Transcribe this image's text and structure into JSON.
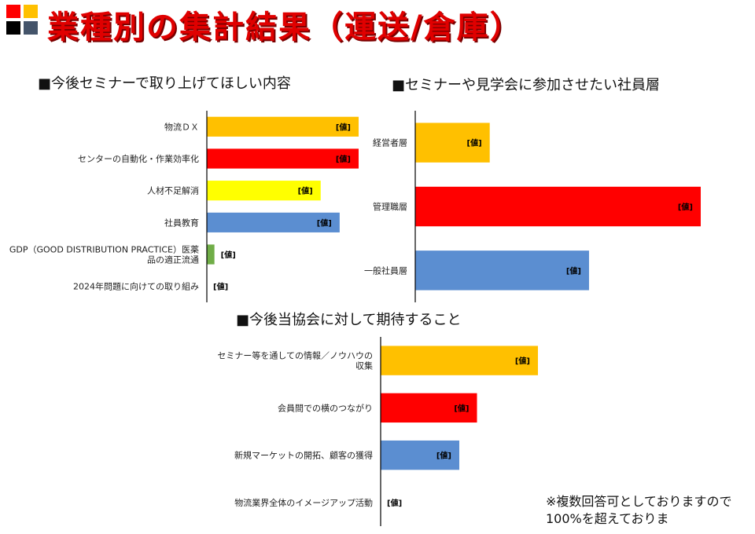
{
  "header": {
    "title": "業種別の集計結果（運送/倉庫）",
    "logo_colors": [
      "#ff0000",
      "#ffc000",
      "#000000",
      "#44546a"
    ]
  },
  "sections": {
    "topics": "■今後セミナーで取り上げてほしい内容",
    "participants": "■セミナーや見学会に参加させたい社員層",
    "expectations": "■今後当協会に対して期待すること"
  },
  "note": "※複数回答可としておりますので100%を超えておりま",
  "chart_data": [
    {
      "type": "bar",
      "orientation": "horizontal",
      "title": "■今後セミナーで取り上げてほしい内容",
      "categories": [
        "物流ＤＸ",
        "センターの自動化・作業効率化",
        "人材不足解消",
        "社員教育",
        "GDP（GOOD DISTRIBUTION PRACTICE）医薬品の適正流通",
        "2024年問題に向けての取り組み"
      ],
      "category_lines": [
        [
          "物流ＤＸ"
        ],
        [
          "センターの自動化・作業効率化"
        ],
        [
          "人材不足解消"
        ],
        [
          "社員教育"
        ],
        [
          "GDP（GOOD DISTRIBUTION PRACTICE）医薬",
          "品の適正流通"
        ],
        [
          "2024年問題に向けての取り組み"
        ]
      ],
      "values": [
        8,
        8,
        6,
        7,
        0.4,
        0
      ],
      "colors": [
        "#ffc000",
        "#ff0000",
        "#ffff00",
        "#5b8ed1",
        "#70ad47",
        "#5b8ed1"
      ],
      "data_labels": [
        "[値]",
        "[値]",
        "[値]",
        "[値]",
        "[値]",
        "[値]"
      ],
      "xlim": [
        0,
        8
      ]
    },
    {
      "type": "bar",
      "orientation": "horizontal",
      "title": "■セミナーや見学会に参加させたい社員層",
      "categories": [
        "経営者層",
        "管理職層",
        "一般社員層"
      ],
      "category_lines": [
        [
          "経営者層"
        ],
        [
          "管理職層"
        ],
        [
          "一般社員層"
        ]
      ],
      "values": [
        3,
        11.5,
        7
      ],
      "colors": [
        "#ffc000",
        "#ff0000",
        "#5b8ed1"
      ],
      "data_labels": [
        "[値]",
        "[値]",
        "[値]"
      ],
      "xlim": [
        0,
        11.5
      ]
    },
    {
      "type": "bar",
      "orientation": "horizontal",
      "title": "■今後当協会に対して期待すること",
      "categories": [
        "セミナー等を通しての情報／ノウハウの収集",
        "会員間での横のつながり",
        "新規マーケットの開拓、顧客の獲得",
        "物流業界全体のイメージアップ活動"
      ],
      "category_lines": [
        [
          "セミナー等を通しての情報／ノウハウの",
          "収集"
        ],
        [
          "会員間での横のつながり"
        ],
        [
          "新規マーケットの開拓、顧客の獲得"
        ],
        [
          "物流業界全体のイメージアップ活動"
        ]
      ],
      "values": [
        8,
        4.9,
        4,
        0
      ],
      "colors": [
        "#ffc000",
        "#ff0000",
        "#5b8ed1",
        "#5b8ed1"
      ],
      "data_labels": [
        "[値]",
        "[値]",
        "[値]",
        "[値]"
      ],
      "xlim": [
        0,
        8
      ]
    }
  ]
}
